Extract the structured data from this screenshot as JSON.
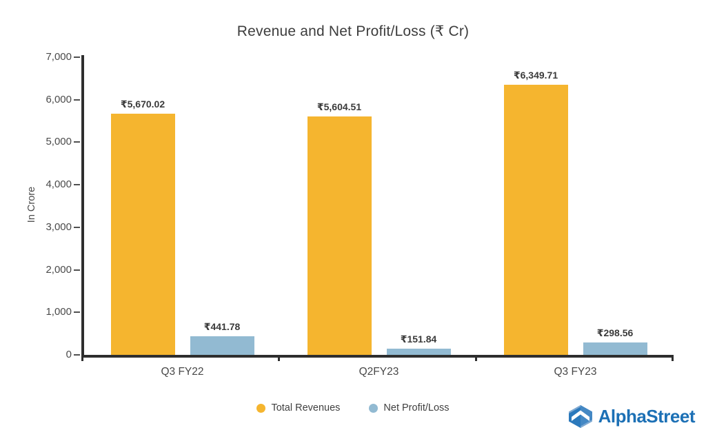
{
  "title": "Revenue and Net Profit/Loss (₹ Cr)",
  "chart_data": {
    "type": "bar",
    "title": "Revenue and Net Profit/Loss (₹ Cr)",
    "ylabel": "In Crore",
    "xlabel": "",
    "ylim": [
      0,
      7000
    ],
    "grid": false,
    "legend_position": "bottom",
    "yticks": [
      {
        "value": 0,
        "label": "0"
      },
      {
        "value": 1000,
        "label": "1,000"
      },
      {
        "value": 2000,
        "label": "2,000"
      },
      {
        "value": 3000,
        "label": "3,000"
      },
      {
        "value": 4000,
        "label": "4,000"
      },
      {
        "value": 5000,
        "label": "5,000"
      },
      {
        "value": 6000,
        "label": "6,000"
      },
      {
        "value": 7000,
        "label": "7,000"
      }
    ],
    "categories": [
      "Q3 FY22",
      "Q2FY23",
      "Q3 FY23"
    ],
    "series": [
      {
        "name": "Total Revenues",
        "color": "#F5B52F",
        "values": [
          5670.02,
          5604.51,
          6349.71
        ],
        "labels": [
          "₹5,670.02",
          "₹5,604.51",
          "₹6,349.71"
        ]
      },
      {
        "name": "Net Profit/Loss",
        "color": "#92BAD2",
        "values": [
          441.78,
          151.84,
          298.56
        ],
        "labels": [
          "₹441.78",
          "₹151.84",
          "₹298.56"
        ]
      }
    ]
  },
  "branding": {
    "logo_text": "AlphaStreet",
    "logo_color": "#1C70B5"
  },
  "colors": {
    "axis": "#2E2E2E",
    "tick_text": "#4A4A4A",
    "value_label_text": "#3A3A3A",
    "revenue_bar": "#F5B52F",
    "profit_bar": "#92BAD2"
  }
}
